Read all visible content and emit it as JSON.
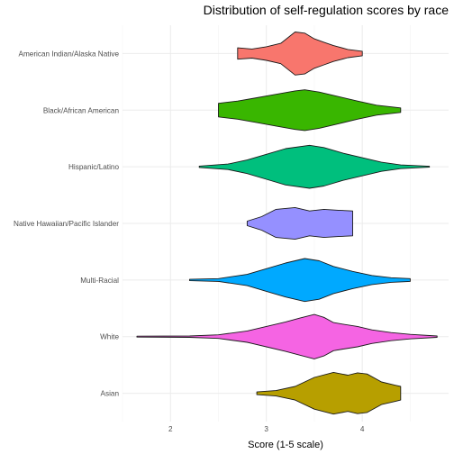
{
  "chart_data": {
    "type": "violin",
    "title": "Distribution of self-regulation scores by race",
    "xlabel": "Score (1-5 scale)",
    "ylabel": "",
    "xlim": [
      1.5,
      4.9
    ],
    "x_ticks": [
      2,
      3,
      4
    ],
    "x_tick_labels": [
      "2",
      "3",
      "4"
    ],
    "grid": true,
    "legend": "none",
    "series": [
      {
        "name": "Asian",
        "color": "#B79F00",
        "min": 2.9,
        "max": 4.4,
        "profile": [
          [
            2.9,
            0.06
          ],
          [
            3.1,
            0.12
          ],
          [
            3.3,
            0.3
          ],
          [
            3.5,
            0.7
          ],
          [
            3.7,
            0.92
          ],
          [
            3.85,
            0.8
          ],
          [
            3.95,
            0.9
          ],
          [
            4.05,
            0.85
          ],
          [
            4.2,
            0.5
          ],
          [
            4.35,
            0.35
          ],
          [
            4.4,
            0.3
          ]
        ]
      },
      {
        "name": "White",
        "color": "#F564E3",
        "min": 1.65,
        "max": 4.78,
        "profile": [
          [
            1.65,
            0.02
          ],
          [
            2.2,
            0.03
          ],
          [
            2.5,
            0.08
          ],
          [
            2.8,
            0.25
          ],
          [
            3.0,
            0.45
          ],
          [
            3.2,
            0.65
          ],
          [
            3.35,
            0.82
          ],
          [
            3.5,
            0.98
          ],
          [
            3.6,
            0.85
          ],
          [
            3.7,
            0.62
          ],
          [
            3.8,
            0.55
          ],
          [
            3.95,
            0.45
          ],
          [
            4.1,
            0.3
          ],
          [
            4.3,
            0.18
          ],
          [
            4.5,
            0.1
          ],
          [
            4.78,
            0.03
          ]
        ]
      },
      {
        "name": "Multi-Racial",
        "color": "#00A9FF",
        "min": 2.2,
        "max": 4.5,
        "profile": [
          [
            2.2,
            0.03
          ],
          [
            2.5,
            0.06
          ],
          [
            2.8,
            0.25
          ],
          [
            3.0,
            0.5
          ],
          [
            3.2,
            0.75
          ],
          [
            3.4,
            0.95
          ],
          [
            3.55,
            0.85
          ],
          [
            3.7,
            0.6
          ],
          [
            3.9,
            0.38
          ],
          [
            4.1,
            0.2
          ],
          [
            4.3,
            0.1
          ],
          [
            4.4,
            0.08
          ],
          [
            4.5,
            0.06
          ]
        ]
      },
      {
        "name": "Native Hawaiian/Pacific Islander",
        "color": "#9590FF",
        "min": 2.8,
        "max": 3.9,
        "profile": [
          [
            2.8,
            0.1
          ],
          [
            2.95,
            0.3
          ],
          [
            3.1,
            0.62
          ],
          [
            3.3,
            0.7
          ],
          [
            3.45,
            0.55
          ],
          [
            3.6,
            0.62
          ],
          [
            3.75,
            0.58
          ],
          [
            3.9,
            0.55
          ]
        ]
      },
      {
        "name": "Hispanic/Latino",
        "color": "#00BF7D",
        "min": 2.3,
        "max": 4.7,
        "profile": [
          [
            2.3,
            0.03
          ],
          [
            2.6,
            0.12
          ],
          [
            2.8,
            0.3
          ],
          [
            3.0,
            0.55
          ],
          [
            3.2,
            0.8
          ],
          [
            3.45,
            0.95
          ],
          [
            3.6,
            0.85
          ],
          [
            3.8,
            0.6
          ],
          [
            4.0,
            0.4
          ],
          [
            4.2,
            0.2
          ],
          [
            4.4,
            0.08
          ],
          [
            4.7,
            0.02
          ]
        ]
      },
      {
        "name": "Black/African American",
        "color": "#39B600",
        "min": 2.5,
        "max": 4.4,
        "profile": [
          [
            2.5,
            0.3
          ],
          [
            2.7,
            0.4
          ],
          [
            2.9,
            0.55
          ],
          [
            3.1,
            0.7
          ],
          [
            3.3,
            0.85
          ],
          [
            3.4,
            0.9
          ],
          [
            3.55,
            0.8
          ],
          [
            3.75,
            0.6
          ],
          [
            3.95,
            0.4
          ],
          [
            4.15,
            0.22
          ],
          [
            4.4,
            0.1
          ]
        ]
      },
      {
        "name": "American Indian/Alaska Native",
        "color": "#F8766D",
        "min": 2.7,
        "max": 4.0,
        "profile": [
          [
            2.7,
            0.25
          ],
          [
            2.85,
            0.2
          ],
          [
            3.0,
            0.3
          ],
          [
            3.15,
            0.45
          ],
          [
            3.3,
            0.95
          ],
          [
            3.4,
            0.9
          ],
          [
            3.5,
            0.65
          ],
          [
            3.6,
            0.5
          ],
          [
            3.7,
            0.35
          ],
          [
            3.85,
            0.18
          ],
          [
            4.0,
            0.1
          ]
        ]
      }
    ]
  }
}
